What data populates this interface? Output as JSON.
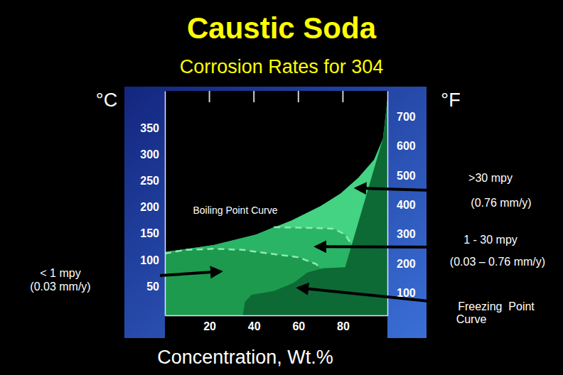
{
  "chart_data": {
    "type": "area",
    "title": "Caustic Soda",
    "subtitle": "Corrosion Rates for 304",
    "x_label": "Concentration, Wt.%",
    "y_label": "°C",
    "y2_label": "°F",
    "xlim": [
      0,
      100
    ],
    "xticks": [
      20,
      40,
      60,
      80
    ],
    "ylim": [
      -5,
      420
    ],
    "yticks": [
      50,
      100,
      150,
      200,
      250,
      300,
      350
    ],
    "y2lim": [
      23,
      788
    ],
    "y2ticks": [
      100,
      200,
      300,
      400,
      500,
      600,
      700
    ],
    "series": [
      {
        "type": "area",
        "color": "#43d383",
        "x": [
          0,
          22,
          41,
          57,
          70,
          79,
          87,
          94,
          98,
          100,
          100,
          0
        ],
        "y": [
          115,
          128,
          148,
          175,
          202,
          226,
          256,
          290,
          330,
          404,
          -5,
          -5
        ]
      },
      {
        "type": "area",
        "color": "#2ab465",
        "x": [
          0,
          22,
          41,
          49,
          60,
          70,
          76,
          81,
          84,
          84,
          0
        ],
        "y": [
          115,
          128,
          148,
          162,
          161,
          160,
          159,
          148,
          128,
          -5,
          -5
        ]
      },
      {
        "type": "area",
        "color": "#1d9a4e",
        "x": [
          0,
          9,
          22,
          35,
          47,
          60,
          68,
          70,
          70,
          0
        ],
        "y": [
          112,
          119,
          121,
          119,
          112,
          105,
          92,
          83,
          -5,
          -5
        ]
      },
      {
        "type": "area",
        "color": "#0d6a35",
        "x": [
          35,
          36,
          39,
          49,
          58,
          64,
          71,
          81,
          98,
          100,
          100
        ],
        "y": [
          -5,
          21,
          34,
          41,
          57,
          76,
          84,
          86,
          330,
          404,
          -5
        ]
      },
      {
        "type": "line",
        "line_style": "dashed",
        "color": "#8fe8b4",
        "x": [
          49,
          60,
          70,
          76,
          81,
          84
        ],
        "y": [
          162,
          161,
          160,
          159,
          148,
          128
        ]
      },
      {
        "type": "line",
        "line_style": "dashed",
        "color": "#8fe8b4",
        "x": [
          0,
          9,
          22,
          35,
          47,
          60,
          68,
          70
        ],
        "y": [
          112,
          119,
          121,
          119,
          112,
          105,
          92,
          83
        ]
      }
    ],
    "annotations": [
      {
        "lines": [
          "Boiling Point Curve"
        ]
      },
      {
        "lines": [
          ">30 mpy",
          "(0.76 mm/y)"
        ],
        "x": 86,
        "y": 236
      },
      {
        "lines": [
          "1 - 30 mpy",
          "(0.03 – 0.76 mm/y)"
        ],
        "x": 68,
        "y": 125
      },
      {
        "lines": [
          "< 1 mpy",
          "(0.03 mm/y)"
        ],
        "x": 25,
        "y": 78
      },
      {
        "lines": [
          "Freezing  Point",
          "Curve"
        ],
        "x": 60,
        "y": 47
      }
    ]
  }
}
